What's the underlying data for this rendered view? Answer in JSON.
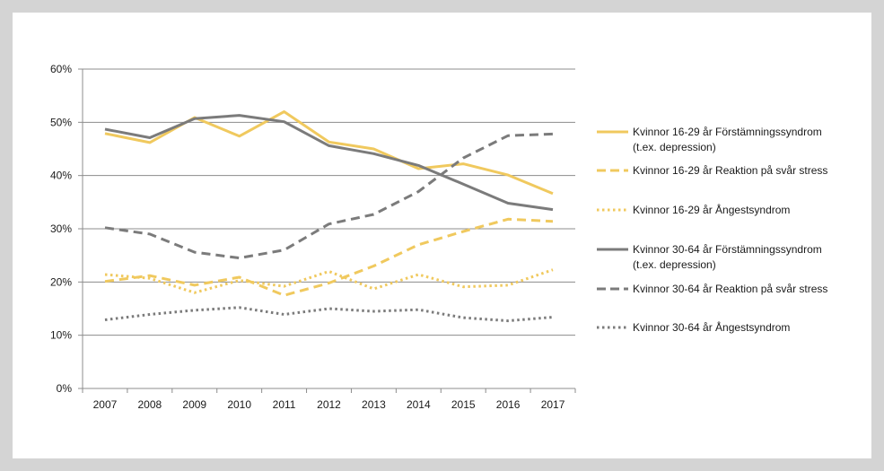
{
  "chart_data": {
    "type": "line",
    "title": "",
    "xlabel": "",
    "ylabel": "",
    "categories": [
      "2007",
      "2008",
      "2009",
      "2010",
      "2011",
      "2012",
      "2013",
      "2014",
      "2015",
      "2016",
      "2017"
    ],
    "ylim": [
      0,
      60
    ],
    "yticks": [
      0,
      10,
      20,
      30,
      40,
      50,
      60
    ],
    "y_tick_labels": [
      "0%",
      "10%",
      "20%",
      "30%",
      "40%",
      "50%",
      "60%"
    ],
    "grid": "horizontal",
    "legend_position": "right",
    "series": [
      {
        "name": "Kvinnor 16-29 år Förstämningssyndrom (t.ex. depression)",
        "legend_lines": [
          "Kvinnor 16-29 år Förstämningssyndrom",
          "(t.ex. depression)"
        ],
        "color": "#f0c95e",
        "style": "solid",
        "values": [
          47.9,
          46.2,
          50.9,
          47.4,
          52.0,
          46.3,
          45.0,
          41.3,
          42.2,
          40.1,
          36.6
        ]
      },
      {
        "name": "Kvinnor 16-29 år Reaktion på svår stress",
        "legend_lines": [
          "Kvinnor 16-29 år Reaktion på svår stress"
        ],
        "color": "#f0c95e",
        "style": "dashed",
        "values": [
          20.1,
          21.2,
          19.4,
          20.9,
          17.5,
          19.8,
          23.0,
          27.0,
          29.5,
          31.8,
          31.4
        ]
      },
      {
        "name": "Kvinnor 16-29 år Ångestsyndrom",
        "legend_lines": [
          "Kvinnor 16-29 år Ångestsyndrom"
        ],
        "color": "#f0c95e",
        "style": "dotted",
        "values": [
          21.4,
          20.7,
          18.0,
          20.3,
          19.2,
          22.0,
          18.7,
          21.4,
          19.1,
          19.4,
          22.3
        ]
      },
      {
        "name": "Kvinnor 30-64 år Förstämningssyndrom (t.ex. depression)",
        "legend_lines": [
          "Kvinnor 30-64 år Förstämningssyndrom",
          "(t.ex. depression)"
        ],
        "color": "#7b7b7b",
        "style": "solid",
        "values": [
          48.7,
          47.1,
          50.7,
          51.3,
          50.1,
          45.6,
          44.1,
          41.9,
          38.4,
          34.8,
          33.6
        ]
      },
      {
        "name": "Kvinnor 30-64 år Reaktion på svår stress",
        "legend_lines": [
          "Kvinnor 30-64 år Reaktion på svår stress"
        ],
        "color": "#7b7b7b",
        "style": "dashed",
        "values": [
          30.2,
          29.0,
          25.6,
          24.5,
          26.0,
          30.9,
          32.7,
          37.0,
          43.3,
          47.5,
          47.8
        ]
      },
      {
        "name": "Kvinnor 30-64 år Ångestsyndrom",
        "legend_lines": [
          "Kvinnor 30-64 år Ångestsyndrom"
        ],
        "color": "#7b7b7b",
        "style": "dotted",
        "values": [
          12.9,
          13.9,
          14.7,
          15.2,
          13.9,
          15.0,
          14.5,
          14.8,
          13.3,
          12.7,
          13.4
        ]
      }
    ]
  }
}
